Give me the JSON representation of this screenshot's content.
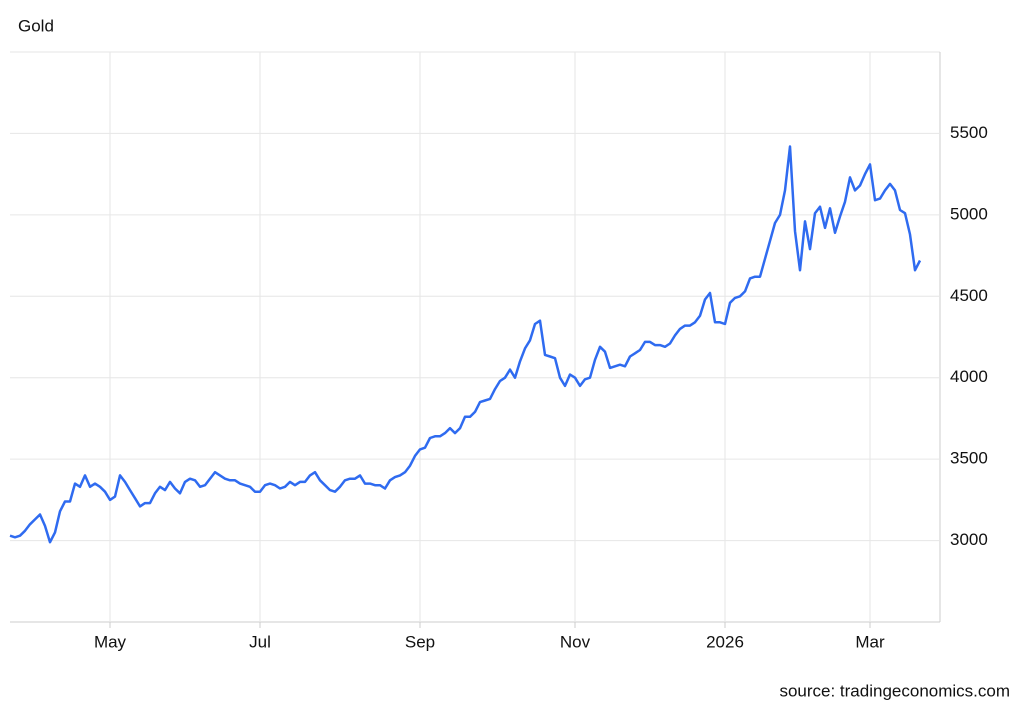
{
  "chart_data": {
    "type": "line",
    "title": "Gold",
    "source": "source: tradingeconomics.com",
    "color": "#2f6bf0",
    "categories": [
      null,
      null,
      null,
      null,
      null,
      null,
      null,
      null,
      null,
      null,
      null,
      null,
      null,
      null,
      null,
      null,
      null,
      null,
      null,
      null,
      "May",
      null,
      null,
      null,
      null,
      null,
      null,
      null,
      null,
      null,
      null,
      null,
      null,
      null,
      null,
      null,
      null,
      null,
      null,
      null,
      null,
      null,
      null,
      null,
      null,
      null,
      null,
      null,
      null,
      null,
      "Jul",
      null,
      null,
      null,
      null,
      null,
      null,
      null,
      null,
      null,
      null,
      null,
      null,
      null,
      null,
      null,
      null,
      null,
      null,
      null,
      null,
      null,
      null,
      null,
      null,
      null,
      null,
      null,
      null,
      null,
      null,
      null,
      "Sep",
      null,
      null,
      null,
      null,
      null,
      null,
      null,
      null,
      null,
      null,
      null,
      null,
      null,
      null,
      null,
      null,
      null,
      null,
      null,
      null,
      null,
      null,
      null,
      null,
      null,
      null,
      null,
      null,
      null,
      null,
      "Nov",
      null,
      null,
      null,
      null,
      null,
      null,
      null,
      null,
      null,
      null,
      null,
      null,
      null,
      null,
      null,
      null,
      null,
      null,
      null,
      null,
      null,
      null,
      null,
      null,
      null,
      null,
      null,
      null,
      null,
      "2026",
      null,
      null,
      null,
      null,
      null,
      null,
      null,
      null,
      null,
      null,
      null,
      null,
      null,
      null,
      null,
      null,
      null,
      null,
      null,
      null,
      null,
      null,
      null,
      null,
      null,
      null,
      null,
      null,
      "Mar",
      null,
      null,
      null,
      null,
      null,
      null,
      null,
      null,
      null,
      null
    ],
    "values": [
      3030,
      3020,
      3030,
      3060,
      3100,
      3130,
      3160,
      3090,
      2990,
      3050,
      3180,
      3240,
      3240,
      3350,
      3330,
      3400,
      3330,
      3350,
      3330,
      3300,
      3250,
      3270,
      3400,
      3360,
      3310,
      3260,
      3210,
      3230,
      3230,
      3290,
      3330,
      3310,
      3360,
      3320,
      3290,
      3360,
      3380,
      3370,
      3330,
      3340,
      3380,
      3420,
      3400,
      3380,
      3370,
      3370,
      3350,
      3340,
      3330,
      3300,
      3300,
      3340,
      3350,
      3340,
      3320,
      3330,
      3360,
      3340,
      3360,
      3360,
      3400,
      3420,
      3370,
      3340,
      3310,
      3300,
      3330,
      3370,
      3380,
      3380,
      3400,
      3350,
      3350,
      3340,
      3340,
      3320,
      3370,
      3390,
      3400,
      3420,
      3460,
      3520,
      3560,
      3570,
      3630,
      3640,
      3640,
      3660,
      3690,
      3660,
      3690,
      3760,
      3760,
      3790,
      3850,
      3860,
      3870,
      3930,
      3980,
      4000,
      4050,
      4000,
      4100,
      4180,
      4230,
      4330,
      4350,
      4140,
      4130,
      4120,
      4000,
      3950,
      4020,
      4000,
      3950,
      3990,
      4000,
      4110,
      4190,
      4160,
      4060,
      4070,
      4080,
      4070,
      4130,
      4150,
      4170,
      4220,
      4220,
      4200,
      4200,
      4190,
      4210,
      4260,
      4300,
      4320,
      4320,
      4340,
      4380,
      4480,
      4520,
      4340,
      4340,
      4330,
      4460,
      4490,
      4500,
      4530,
      4610,
      4620,
      4620,
      4730,
      4840,
      4950,
      5000,
      5150,
      5420,
      4900,
      4660,
      4960,
      4790,
      5010,
      5050,
      4920,
      5040,
      4890,
      4990,
      5080,
      5230,
      5150,
      5180,
      5250,
      5310,
      5090,
      5100,
      5150,
      5190,
      5150,
      5030,
      5010,
      4880,
      4660,
      4720
    ],
    "ylim": [
      2500,
      6000
    ],
    "yticks": [
      3000,
      3500,
      4000,
      4500,
      5000,
      5500
    ],
    "grid": true
  }
}
